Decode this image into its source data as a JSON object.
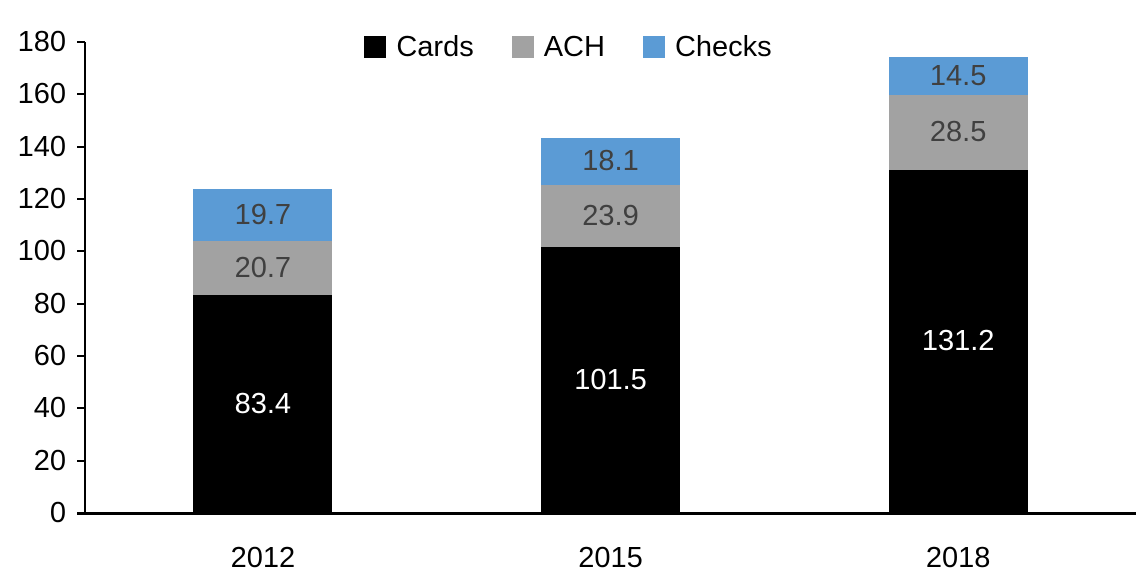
{
  "chart_data": {
    "type": "bar",
    "stacked": true,
    "title": "",
    "xlabel": "",
    "ylabel": "",
    "categories": [
      "2012",
      "2015",
      "2018"
    ],
    "series": [
      {
        "name": "Cards",
        "color": "#000000",
        "label_color": "#ffffff",
        "values": [
          83.4,
          101.5,
          131.2
        ]
      },
      {
        "name": "ACH",
        "color": "#a2a2a2",
        "label_color": "#404040",
        "values": [
          20.7,
          23.9,
          28.5
        ]
      },
      {
        "name": "Checks",
        "color": "#5b9bd5",
        "label_color": "#404040",
        "values": [
          19.7,
          18.1,
          14.5
        ]
      }
    ],
    "totals": [
      123.8,
      143.5,
      174.2
    ],
    "ylim": [
      0,
      180
    ],
    "yticks": [
      0,
      20,
      40,
      60,
      80,
      100,
      120,
      140,
      160,
      180
    ],
    "grid": false,
    "legend_position": "top",
    "axis_color": "#000000",
    "text_color": "#000000"
  }
}
